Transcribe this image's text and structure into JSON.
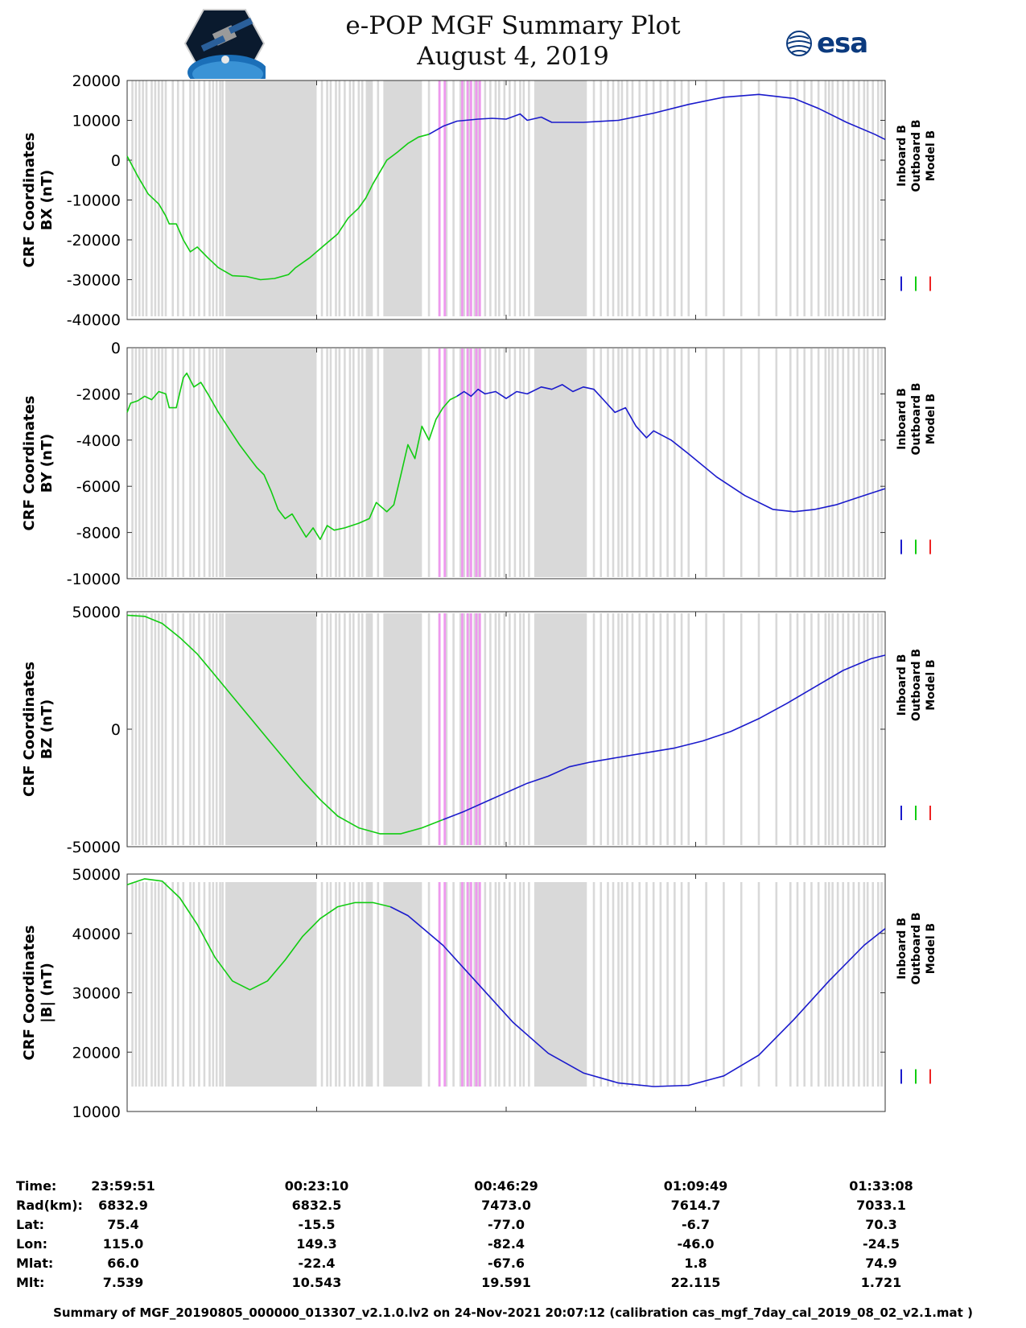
{
  "header": {
    "title": "e-POP MGF Summary Plot",
    "date": "August 4, 2019",
    "esa_logo_text": "esa"
  },
  "chart_data": [
    {
      "type": "line",
      "ylabel": [
        "CRF Coordinates",
        "BX (nT)"
      ],
      "ylim": [
        -40000,
        20000
      ],
      "yticks": [
        20000,
        10000,
        0,
        -10000,
        -20000,
        -30000,
        -40000
      ],
      "ytick_labels": [
        "20000",
        "10000",
        "0",
        "-10000",
        "-20000",
        "-30000",
        "-40000"
      ],
      "legend": [
        "Inboard B",
        "Outboard B",
        "Model B"
      ],
      "series": [
        {
          "name": "Outboard B",
          "color": "#11cc11",
          "points": [
            [
              0,
              1000
            ],
            [
              3,
              -4000
            ],
            [
              6,
              -8500
            ],
            [
              9,
              -11000
            ],
            [
              11,
              -14000
            ],
            [
              12,
              -16000
            ],
            [
              14,
              -16000
            ],
            [
              16,
              -20000
            ],
            [
              18,
              -23000
            ],
            [
              20,
              -21800
            ],
            [
              23,
              -24500
            ],
            [
              26,
              -27000
            ],
            [
              30,
              -29000
            ],
            [
              34,
              -29200
            ],
            [
              38,
              -30000
            ],
            [
              42,
              -29700
            ],
            [
              46,
              -28700
            ],
            [
              48,
              -27000
            ],
            [
              52,
              -24500
            ],
            [
              56,
              -21500
            ],
            [
              60,
              -18500
            ],
            [
              63,
              -14500
            ],
            [
              66,
              -12000
            ],
            [
              68,
              -9500
            ],
            [
              70,
              -6000
            ],
            [
              72,
              -3000
            ],
            [
              74,
              0
            ],
            [
              77,
              2000
            ],
            [
              80,
              4200
            ],
            [
              83,
              5800
            ],
            [
              86,
              6500
            ]
          ]
        },
        {
          "name": "Inboard B",
          "color": "#1a1acc",
          "points": [
            [
              86,
              6500
            ],
            [
              90,
              8500
            ],
            [
              94,
              9800
            ],
            [
              100,
              10300
            ],
            [
              104,
              10500
            ],
            [
              108,
              10300
            ],
            [
              112,
              11600
            ],
            [
              114,
              10000
            ],
            [
              118,
              10800
            ],
            [
              121,
              9500
            ],
            [
              130,
              9500
            ],
            [
              140,
              10000
            ],
            [
              150,
              11800
            ],
            [
              160,
              14000
            ],
            [
              170,
              15800
            ],
            [
              180,
              16500
            ],
            [
              190,
              15500
            ],
            [
              197,
              13000
            ],
            [
              205,
              9500
            ],
            [
              213,
              6500
            ],
            [
              216,
              5200
            ]
          ]
        }
      ]
    },
    {
      "type": "line",
      "ylabel": [
        "CRF Coordinates",
        "BY (nT)"
      ],
      "ylim": [
        -10000,
        0
      ],
      "yticks": [
        0,
        -2000,
        -4000,
        -6000,
        -8000,
        -10000
      ],
      "ytick_labels": [
        "0",
        "-2000",
        "-4000",
        "-6000",
        "-8000",
        "-10000"
      ],
      "legend": [
        "Inboard B",
        "Outboard B",
        "Model B"
      ],
      "series": [
        {
          "name": "Outboard B",
          "color": "#11cc11",
          "points": [
            [
              0,
              -2800
            ],
            [
              1,
              -2400
            ],
            [
              3,
              -2300
            ],
            [
              5,
              -2100
            ],
            [
              7,
              -2250
            ],
            [
              9,
              -1900
            ],
            [
              11,
              -2000
            ],
            [
              12,
              -2600
            ],
            [
              14,
              -2600
            ],
            [
              16,
              -1300
            ],
            [
              17,
              -1100
            ],
            [
              19,
              -1700
            ],
            [
              21,
              -1500
            ],
            [
              23,
              -2000
            ],
            [
              26,
              -2800
            ],
            [
              29,
              -3500
            ],
            [
              32,
              -4200
            ],
            [
              35,
              -4800
            ],
            [
              37,
              -5200
            ],
            [
              39,
              -5500
            ],
            [
              41,
              -6200
            ],
            [
              43,
              -7000
            ],
            [
              45,
              -7400
            ],
            [
              47,
              -7200
            ],
            [
              49,
              -7700
            ],
            [
              51,
              -8200
            ],
            [
              53,
              -7800
            ],
            [
              55,
              -8300
            ],
            [
              57,
              -7700
            ],
            [
              59,
              -7900
            ],
            [
              62,
              -7800
            ],
            [
              66,
              -7600
            ],
            [
              69,
              -7400
            ],
            [
              71,
              -6700
            ],
            [
              74,
              -7100
            ],
            [
              76,
              -6800
            ],
            [
              78,
              -5500
            ],
            [
              80,
              -4200
            ],
            [
              82,
              -4800
            ],
            [
              84,
              -3400
            ],
            [
              86,
              -4000
            ],
            [
              88,
              -3100
            ],
            [
              90,
              -2600
            ],
            [
              92,
              -2250
            ],
            [
              94,
              -2100
            ]
          ]
        },
        {
          "name": "Inboard B",
          "color": "#1a1acc",
          "points": [
            [
              94,
              -2100
            ],
            [
              96,
              -1900
            ],
            [
              98,
              -2100
            ],
            [
              100,
              -1800
            ],
            [
              102,
              -2000
            ],
            [
              105,
              -1900
            ],
            [
              108,
              -2200
            ],
            [
              111,
              -1900
            ],
            [
              114,
              -2000
            ],
            [
              118,
              -1700
            ],
            [
              121,
              -1800
            ],
            [
              124,
              -1600
            ],
            [
              127,
              -1900
            ],
            [
              130,
              -1700
            ],
            [
              133,
              -1800
            ],
            [
              136,
              -2300
            ],
            [
              139,
              -2800
            ],
            [
              142,
              -2600
            ],
            [
              145,
              -3400
            ],
            [
              148,
              -3900
            ],
            [
              150,
              -3600
            ],
            [
              155,
              -4000
            ],
            [
              160,
              -4600
            ],
            [
              168,
              -5600
            ],
            [
              176,
              -6400
            ],
            [
              184,
              -7000
            ],
            [
              190,
              -7100
            ],
            [
              196,
              -7000
            ],
            [
              202,
              -6800
            ],
            [
              208,
              -6500
            ],
            [
              212,
              -6300
            ],
            [
              216,
              -6100
            ]
          ]
        }
      ]
    },
    {
      "type": "line",
      "ylabel": [
        "CRF Coordinates",
        "BZ (nT)"
      ],
      "ylim": [
        -50000,
        50000
      ],
      "yticks": [
        50000,
        0,
        -50000
      ],
      "ytick_labels": [
        "50000",
        "0",
        "-50000"
      ],
      "legend": [
        "Inboard B",
        "Outboard B",
        "Model B"
      ],
      "series": [
        {
          "name": "Outboard B",
          "color": "#11cc11",
          "points": [
            [
              0,
              48500
            ],
            [
              5,
              48000
            ],
            [
              10,
              45000
            ],
            [
              15,
              39000
            ],
            [
              20,
              32000
            ],
            [
              25,
              23000
            ],
            [
              30,
              14000
            ],
            [
              35,
              5000
            ],
            [
              40,
              -4000
            ],
            [
              45,
              -13000
            ],
            [
              50,
              -22000
            ],
            [
              55,
              -30000
            ],
            [
              60,
              -37000
            ],
            [
              66,
              -42000
            ],
            [
              72,
              -44500
            ],
            [
              78,
              -44500
            ],
            [
              84,
              -42000
            ],
            [
              90,
              -38500
            ]
          ]
        },
        {
          "name": "Inboard B",
          "color": "#1a1acc",
          "points": [
            [
              90,
              -38500
            ],
            [
              96,
              -35000
            ],
            [
              102,
              -31000
            ],
            [
              108,
              -27000
            ],
            [
              114,
              -23000
            ],
            [
              120,
              -20000
            ],
            [
              126,
              -16000
            ],
            [
              132,
              -14000
            ],
            [
              140,
              -12000
            ],
            [
              148,
              -10000
            ],
            [
              156,
              -8000
            ],
            [
              164,
              -5000
            ],
            [
              172,
              -1000
            ],
            [
              180,
              4500
            ],
            [
              188,
              11000
            ],
            [
              196,
              18000
            ],
            [
              204,
              25000
            ],
            [
              212,
              30000
            ],
            [
              216,
              31500
            ]
          ]
        }
      ]
    },
    {
      "type": "line",
      "ylabel": [
        "CRF Coordinates",
        "|B| (nT)"
      ],
      "ylim": [
        10000,
        50000
      ],
      "yticks": [
        50000,
        40000,
        30000,
        20000,
        10000
      ],
      "ytick_labels": [
        "50000",
        "40000",
        "30000",
        "20000",
        "10000"
      ],
      "legend": [
        "Inboard B",
        "Outboard B",
        "Model B"
      ],
      "series": [
        {
          "name": "Outboard B",
          "color": "#11cc11",
          "points": [
            [
              0,
              48200
            ],
            [
              5,
              49200
            ],
            [
              10,
              48800
            ],
            [
              15,
              46000
            ],
            [
              20,
              41500
            ],
            [
              25,
              36000
            ],
            [
              30,
              32000
            ],
            [
              35,
              30500
            ],
            [
              40,
              32000
            ],
            [
              45,
              35500
            ],
            [
              50,
              39500
            ],
            [
              55,
              42500
            ],
            [
              60,
              44500
            ],
            [
              65,
              45200
            ],
            [
              70,
              45200
            ],
            [
              75,
              44500
            ]
          ]
        },
        {
          "name": "Inboard B",
          "color": "#1a1acc",
          "points": [
            [
              75,
              44500
            ],
            [
              80,
              43000
            ],
            [
              90,
              38000
            ],
            [
              100,
              31500
            ],
            [
              110,
              25000
            ],
            [
              120,
              19800
            ],
            [
              130,
              16500
            ],
            [
              140,
              14800
            ],
            [
              150,
              14200
            ],
            [
              160,
              14400
            ],
            [
              170,
              16000
            ],
            [
              180,
              19500
            ],
            [
              190,
              25500
            ],
            [
              200,
              32000
            ],
            [
              210,
              38000
            ],
            [
              216,
              40800
            ]
          ]
        }
      ]
    }
  ],
  "x_axis": {
    "minutes_span": 216,
    "tick_minutes": [
      0,
      54,
      108,
      162,
      216
    ]
  },
  "shading": {
    "gray_color": "#d9d9d9",
    "pink_color": "#ee99ee",
    "gray_blocks": [
      [
        28,
        54
      ],
      [
        68,
        70
      ],
      [
        73,
        84
      ],
      [
        116,
        131
      ]
    ],
    "gray_lines": [
      1.5,
      2.5,
      3.5,
      4.5,
      5.5,
      7,
      8,
      9,
      10,
      11,
      13,
      14.5,
      16,
      18,
      19,
      20.5,
      22,
      23.5,
      24.5,
      25.5,
      26.5,
      27.2,
      55.5,
      57,
      58,
      59.5,
      60.5,
      62,
      63.5,
      64.5,
      66,
      67,
      71.5,
      79,
      86,
      89,
      91,
      93,
      95,
      96,
      97.5,
      99,
      100,
      102,
      103.5,
      105,
      106,
      107.5,
      109,
      110.5,
      112,
      113,
      114.5,
      133,
      135,
      137,
      138.5,
      140,
      141,
      142.5,
      144,
      146,
      148,
      150,
      152,
      154,
      156,
      158,
      160,
      165,
      170,
      175,
      180,
      185,
      189,
      191,
      193,
      195,
      197,
      199,
      200,
      201,
      202.5,
      204,
      205.5,
      207,
      208.5,
      210,
      211,
      212.5,
      214,
      215
    ],
    "pink_lines": [
      89,
      90.5,
      95.5,
      97,
      98,
      99.5,
      100.5
    ]
  },
  "ephemeris": {
    "labels": [
      "Time:",
      "Rad(km):",
      "Lat:",
      "Lon:",
      "Mlat:",
      "Mlt:"
    ],
    "columns": [
      [
        "23:59:51",
        "6832.9",
        "75.4",
        "115.0",
        "66.0",
        "7.539"
      ],
      [
        "00:23:10",
        "6832.5",
        "-15.5",
        "149.3",
        "-22.4",
        "10.543"
      ],
      [
        "00:46:29",
        "7473.0",
        "-77.0",
        "-82.4",
        "-67.6",
        "19.591"
      ],
      [
        "01:09:49",
        "7614.7",
        "-6.7",
        "-46.0",
        "1.8",
        "22.115"
      ],
      [
        "01:33:08",
        "7033.1",
        "70.3",
        "-24.5",
        "74.9",
        "1.721"
      ]
    ]
  },
  "footer": "Summary of MGF_20190805_000000_013307_v2.1.0.lv2 on 24-Nov-2021 20:07:12 (calibration cas_mgf_7day_cal_2019_08_02_v2.1.mat )",
  "legend_colors": [
    "#1a1acc",
    "#11cc11",
    "#ee2222"
  ]
}
